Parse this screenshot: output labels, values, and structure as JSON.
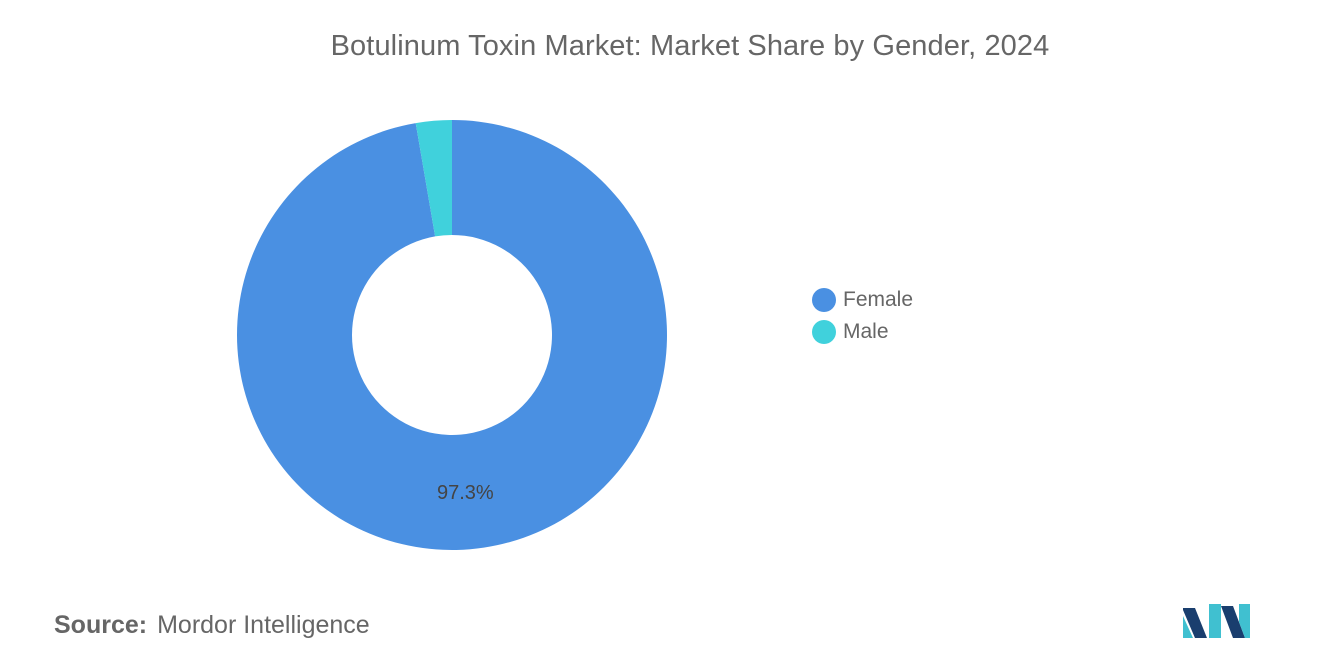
{
  "title": "Botulinum Toxin Market: Market Share by Gender, 2024",
  "source": {
    "prefix": "Source:",
    "name": "Mordor Intelligence"
  },
  "colors": {
    "female": "#4a90e2",
    "male": "#40d1dc",
    "text": "#666666"
  },
  "logo_icon": "mordor-intelligence-logo",
  "chart_data": {
    "type": "pie",
    "variant": "donut",
    "title": "Botulinum Toxin Market: Market Share by Gender, 2024",
    "series": [
      {
        "name": "Female",
        "value": 97.3,
        "color": "#4a90e2",
        "label": "97.3%"
      },
      {
        "name": "Male",
        "value": 2.7,
        "color": "#40d1dc",
        "label": ""
      }
    ],
    "start_angle": "top (12 o'clock), clockwise",
    "legend_position": "right"
  }
}
